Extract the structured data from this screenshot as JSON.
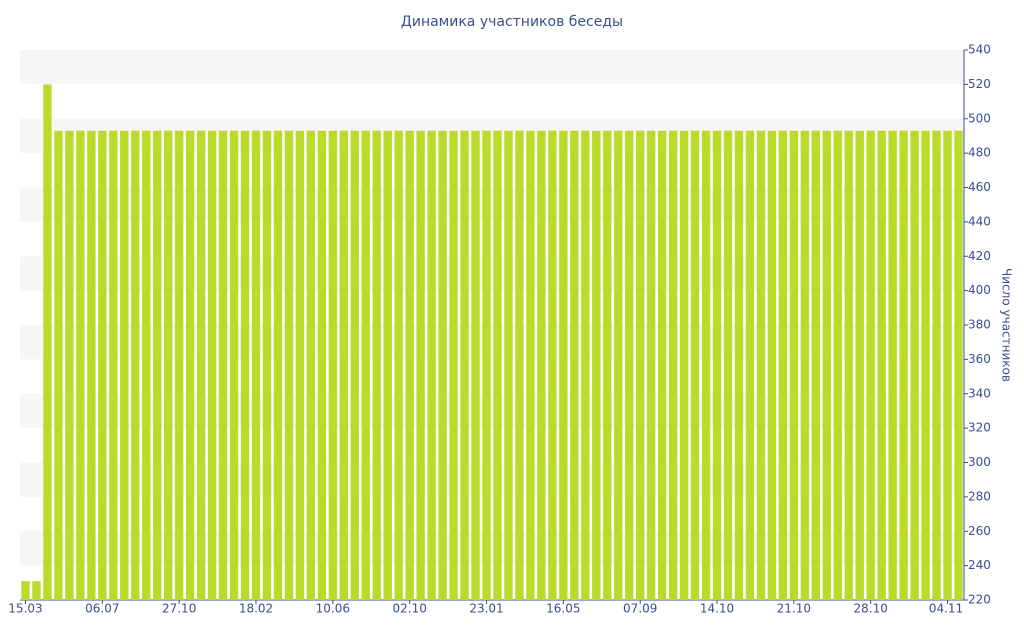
{
  "chart_data": {
    "type": "bar",
    "title": "Динамика участников беседы",
    "y_label": "Число участников",
    "color": "#bbdb2b",
    "categories": [
      "15.03",
      null,
      null,
      null,
      null,
      null,
      null,
      "06.07",
      null,
      null,
      null,
      null,
      null,
      null,
      "27.10",
      null,
      null,
      null,
      null,
      null,
      null,
      "18.02",
      null,
      null,
      null,
      null,
      null,
      null,
      "10.06",
      null,
      null,
      null,
      null,
      null,
      null,
      "02.10",
      null,
      null,
      null,
      null,
      null,
      null,
      "23.01",
      null,
      null,
      null,
      null,
      null,
      null,
      "16.05",
      null,
      null,
      null,
      null,
      null,
      null,
      "07.09",
      null,
      null,
      null,
      null,
      null,
      null,
      "14.10",
      null,
      null,
      null,
      null,
      null,
      null,
      "21.10",
      null,
      null,
      null,
      null,
      null,
      null,
      "28.10",
      null,
      null,
      null,
      null,
      null,
      null,
      "04.11",
      null
    ],
    "values": [
      231,
      231,
      520,
      493,
      493,
      493,
      493,
      493,
      493,
      493,
      493,
      493,
      493,
      493,
      493,
      493,
      493,
      493,
      493,
      493,
      493,
      493,
      493,
      493,
      493,
      493,
      493,
      493,
      493,
      493,
      493,
      493,
      493,
      493,
      493,
      493,
      493,
      493,
      493,
      493,
      493,
      493,
      493,
      493,
      493,
      493,
      493,
      493,
      493,
      493,
      493,
      493,
      493,
      493,
      493,
      493,
      493,
      493,
      493,
      493,
      493,
      493,
      493,
      493,
      493,
      493,
      493,
      493,
      493,
      493,
      493,
      493,
      493,
      493,
      493,
      493,
      493,
      493,
      493,
      493,
      493,
      493,
      493,
      493,
      493,
      493
    ],
    "ylim": [
      220,
      540
    ],
    "yticks": [
      220,
      240,
      260,
      280,
      300,
      320,
      340,
      360,
      380,
      400,
      420,
      440,
      460,
      480,
      500,
      520,
      540
    ],
    "y_axis_side": "right",
    "grid": true
  }
}
